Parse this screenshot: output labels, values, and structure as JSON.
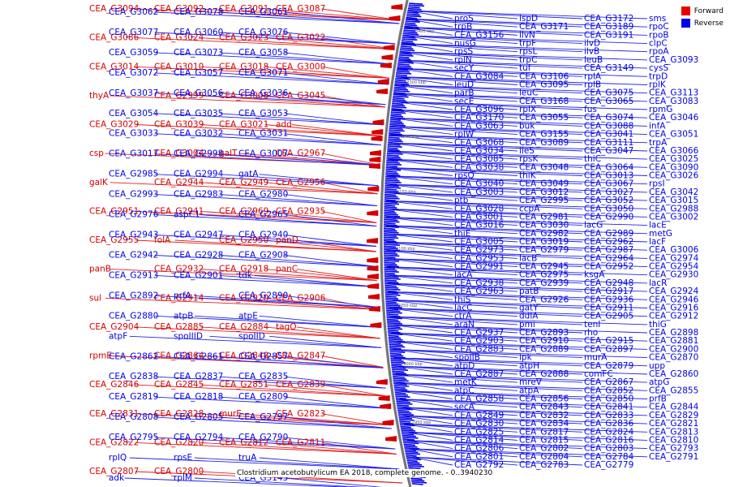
{
  "caption": "Clostridium acetobutylicum EA 2018, complete genome. - 0..3940230",
  "legend": [
    {
      "label": "Forward",
      "color": "#e80000"
    },
    {
      "label": "Reverse",
      "color": "#0000ee"
    }
  ],
  "colors": {
    "forward": "#d40000",
    "reverse": "#0000e6",
    "backbone": "#777777"
  },
  "ticks": [
    "3400 kbp",
    "3300 kbp",
    "3200 kbp",
    "3150 kbp",
    "3100 kbp",
    "3050 kbp",
    "3000 kbp",
    "2950 kbp"
  ],
  "forward_labels": [
    "CEA_G3094",
    "CEA_G3092",
    "CEA_G3091",
    "CEA_G3087",
    "CEA_G3086",
    "CEA_G3024",
    "CEA_G3023",
    "CEA_G3022",
    "CEA_G3014",
    "CEA_G3010",
    "CEA_G3018",
    "CEA_G3000",
    "thyA",
    "CEA_G2999",
    "CEA_G3008",
    "CEA_G3045",
    "CEA_G3029",
    "CEA_G3039",
    "CEA_G3021",
    "add",
    "csp",
    "CEA_G3004",
    "galT",
    "CEA_G2967",
    "galK",
    "CEA_G2944",
    "CEA_G2949",
    "CEA_G2956",
    "CEA_G2951",
    "CEA_G2941",
    "CEA_G2969",
    "CEA_G2935",
    "CEA_G2955",
    "folA",
    "CEA_G2950",
    "panD",
    "panB",
    "CEA_G2932",
    "CEA_G2918",
    "panC",
    "sul",
    "CEA_G2914",
    "CEA_G2920",
    "CEA_G2906",
    "CEA_G2904",
    "CEA_G2885",
    "CEA_G2884",
    "tagO",
    "rpmE",
    "CEA_G2864",
    "CEA_G2848",
    "CEA_G2847",
    "CEA_G2846",
    "CEA_G2845",
    "CEA_G2851",
    "CEA_G2839",
    "CEA_G2831",
    "CEA_G2828",
    "murE",
    "CEA_G2823",
    "CEA_G2822",
    "CEA_G2820",
    "CEA_G2812",
    "CEA_G2811",
    "CEA_G2807",
    "CEA_G2800"
  ],
  "reverse_labels_left": [
    "CEA_G3062",
    "CEA_G3078",
    "CEA_G3061",
    "CEA_G3077",
    "CEA_G3060",
    "CEA_G3076",
    "CEA_G3059",
    "CEA_G3073",
    "CEA_G3058",
    "CEA_G3072",
    "CEA_G3057",
    "CEA_G3071",
    "CEA_G3037",
    "CEA_G3056",
    "CEA_G3036",
    "CEA_G3054",
    "CEA_G3035",
    "CEA_G3053",
    "CEA_G3033",
    "CEA_G3032",
    "CEA_G3031",
    "CEA_G3017",
    "CEA_G2998",
    "CEA_G3007",
    "CEA_G2985",
    "CEA_G2994",
    "gatA",
    "CEA_G2993",
    "CEA_G2983",
    "CEA_G2980",
    "CEA_G2976",
    "aspC1",
    "CEA_G2965",
    "CEA_G2943",
    "CEA_G2947",
    "CEA_G2940",
    "CEA_G2942",
    "CEA_G2928",
    "CEA_G2908",
    "CEA_G2913",
    "CEA_G2901",
    "tdk",
    "CEA_G2892",
    "prfA",
    "CEA_G2890",
    "CEA_G2880",
    "atpB",
    "atpE",
    "atpF",
    "spoIIID",
    "spoIID",
    "CEA_G2862",
    "CEA_G2861",
    "CEA_G2857",
    "CEA_G2838",
    "CEA_G2837",
    "CEA_G2835",
    "CEA_G2819",
    "CEA_G2818",
    "CEA_G2809",
    "CEA_G2808",
    "CEA_G2805",
    "CEA_G2797",
    "CEA_G2795",
    "CEA_G2794",
    "CEA_G2790",
    "rplQ",
    "rpsE",
    "truA",
    "adk",
    "rplM",
    "CEA_G3145"
  ],
  "reverse_labels_right": [
    "proS",
    "ispD",
    "CEA_G3172",
    "sms",
    "trpB",
    "CEA_G3171",
    "CEA_G3189",
    "rpoC",
    "CEA_G3156",
    "ilvN",
    "CEA_G3191",
    "rpoB",
    "nusG",
    "trpF",
    "ilvD",
    "clpC",
    "rpsS",
    "rpsL",
    "ilvB",
    "rpoA",
    "rplN",
    "trpC",
    "leuB",
    "CEA_G3093",
    "secY",
    "tuf",
    "CEA_G3149",
    "cysS",
    "CEA_G3084",
    "CEA_G3106",
    "rplA",
    "trpD",
    "leuD",
    "CEA_G3095",
    "rplB",
    "rplK",
    "parB",
    "leuC",
    "CEA_G3075",
    "CEA_G3113",
    "secE",
    "CEA_G3168",
    "CEA_G3065",
    "CEA_G3083",
    "CEA_G3096",
    "rplX",
    "fus",
    "rpmG",
    "CEA_G3170",
    "CEA_G3055",
    "CEA_G3074",
    "CEA_G3046",
    "CEA_G3063",
    "buk",
    "CEA_G3088",
    "infA",
    "rplW",
    "CEA_G3155",
    "CEA_G3041",
    "CEA_G3051",
    "CEA_G3068",
    "CEA_G3089",
    "CEA_G3111",
    "trpA",
    "CEA_G3034",
    "ileS",
    "CEA_G3047",
    "CEA_G3066",
    "CEA_G3085",
    "rpsK",
    "thiC",
    "CEA_G3025",
    "CEA_G3038",
    "CEA_G3048",
    "CEA_G3064",
    "CEA_G3090",
    "rpsQ",
    "thiK",
    "CEA_G3013",
    "CEA_G3026",
    "CEA_G3040",
    "CEA_G3049",
    "CEA_G3067",
    "rpsI",
    "CEA_G3003",
    "CEA_G3012",
    "CEA_G3027",
    "CEA_G3042",
    "ptb",
    "CEA_G2995",
    "CEA_G3052",
    "CEA_G3015",
    "CEA_G3028",
    "ccpA",
    "CEA_G3050",
    "CEA_G2988",
    "CEA_G3001",
    "CEA_G2981",
    "CEA_G2990",
    "CEA_G3002",
    "CEA_G3016",
    "CEA_G3030",
    "lacG",
    "lacE",
    "thiE",
    "CEA_G2982",
    "CEA_G2989",
    "metG",
    "CEA_G3005",
    "CEA_G3019",
    "CEA_G2962",
    "lacF",
    "CEA_G2973",
    "CEA_G2979",
    "CEA_G2987",
    "CEA_G3006",
    "CEA_G2953",
    "lacB",
    "CEA_G2964",
    "CEA_G2974",
    "CEA_G2991",
    "CEA_G2945",
    "CEA_G2952",
    "CEA_G2954",
    "lacA",
    "CEA_G2975",
    "ksgA",
    "CEA_G2930",
    "CEA_G2938",
    "CEA_G2939",
    "CEA_G2948",
    "lacR",
    "CEA_G2963",
    "patB",
    "CEA_G2917",
    "CEA_G2924",
    "thiS",
    "CEA_G2926",
    "CEA_G2936",
    "CEA_G2946",
    "lacC",
    "gatY",
    "CEA_G2911",
    "CEA_G2916",
    "ctrA",
    "ddlA",
    "CEA_G2905",
    "CEA_G2912",
    "araN",
    "pmi",
    "tenI",
    "thiG",
    "CEA_G2937",
    "CEA_G2893",
    "rho",
    "CEA_G2898",
    "CEA_G2903",
    "CEA_G2910",
    "CEA_G2915",
    "CEA_G2881",
    "CEA_G2883",
    "CEA_G2889",
    "CEA_G2897",
    "CEA_G2900",
    "spoIIB",
    "ipk",
    "murA",
    "CEA_G2870",
    "atpD",
    "atpH",
    "CEA_G2879",
    "upp",
    "CEA_G2887",
    "CEA_G2888",
    "comFC",
    "CEA_G2860",
    "metK",
    "mreV",
    "CEA_G2867",
    "atpG",
    "atpC",
    "atpA",
    "CEA_G2852",
    "CEA_G2855",
    "CEA_G2858",
    "CEA_G2856",
    "CEA_G2850",
    "prfB",
    "secA",
    "CEA_G2843",
    "CEA_G2841",
    "CEA_G2844",
    "CEA_G2849",
    "CEA_G2832",
    "CEA_G2833",
    "CEA_G2829",
    "CEA_G2830",
    "CEA_G2834",
    "CEA_G2836",
    "CEA_G2821",
    "CEA_G2825",
    "CEA_G2817",
    "CEA_G2824",
    "CEA_G2813",
    "CEA_G2814",
    "CEA_G2815",
    "CEA_G2816",
    "CEA_G2810",
    "CEA_G2806",
    "CEA_G2802",
    "CEA_G2803",
    "CEA_G2793",
    "CEA_G2801",
    "CEA_G2804",
    "CEA_G2784",
    "CEA_G2791",
    "CEA_G2792",
    "CEA_G2783",
    "CEA_G2779"
  ]
}
